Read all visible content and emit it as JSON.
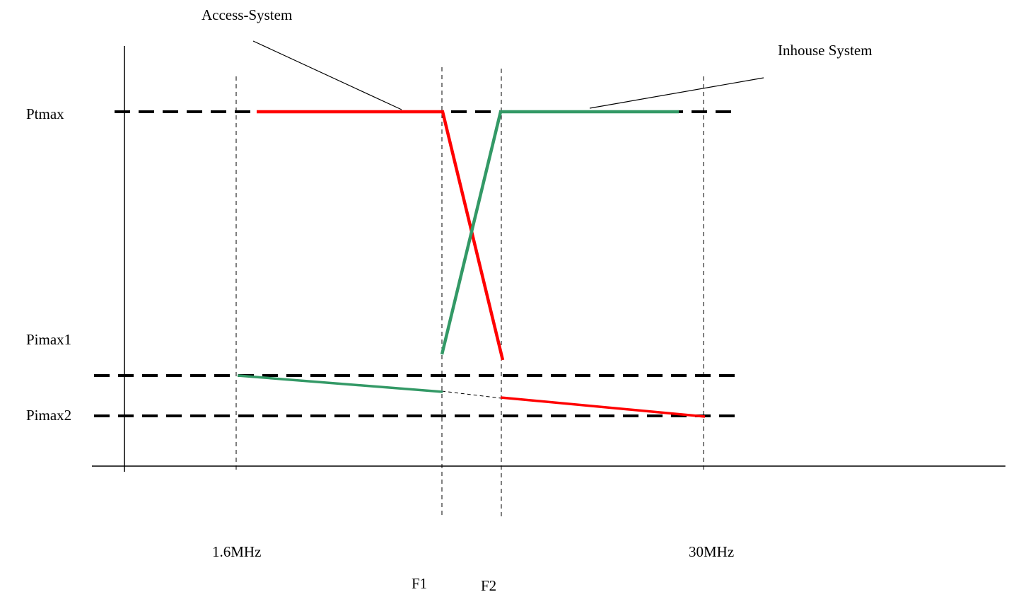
{
  "labels": {
    "access_system": "Access-System",
    "inhouse_system": "Inhouse System",
    "ptmax": "Ptmax",
    "pimax1": "Pimax1",
    "pimax2": "Pimax2",
    "freq_low": "1.6MHz",
    "freq_high": "30MHz",
    "f1": "F1",
    "f2": "F2"
  },
  "colors": {
    "access_system": "#ff0000",
    "inhouse_system": "#339966",
    "axes": "#000000",
    "reference_lines": "#000000"
  }
}
